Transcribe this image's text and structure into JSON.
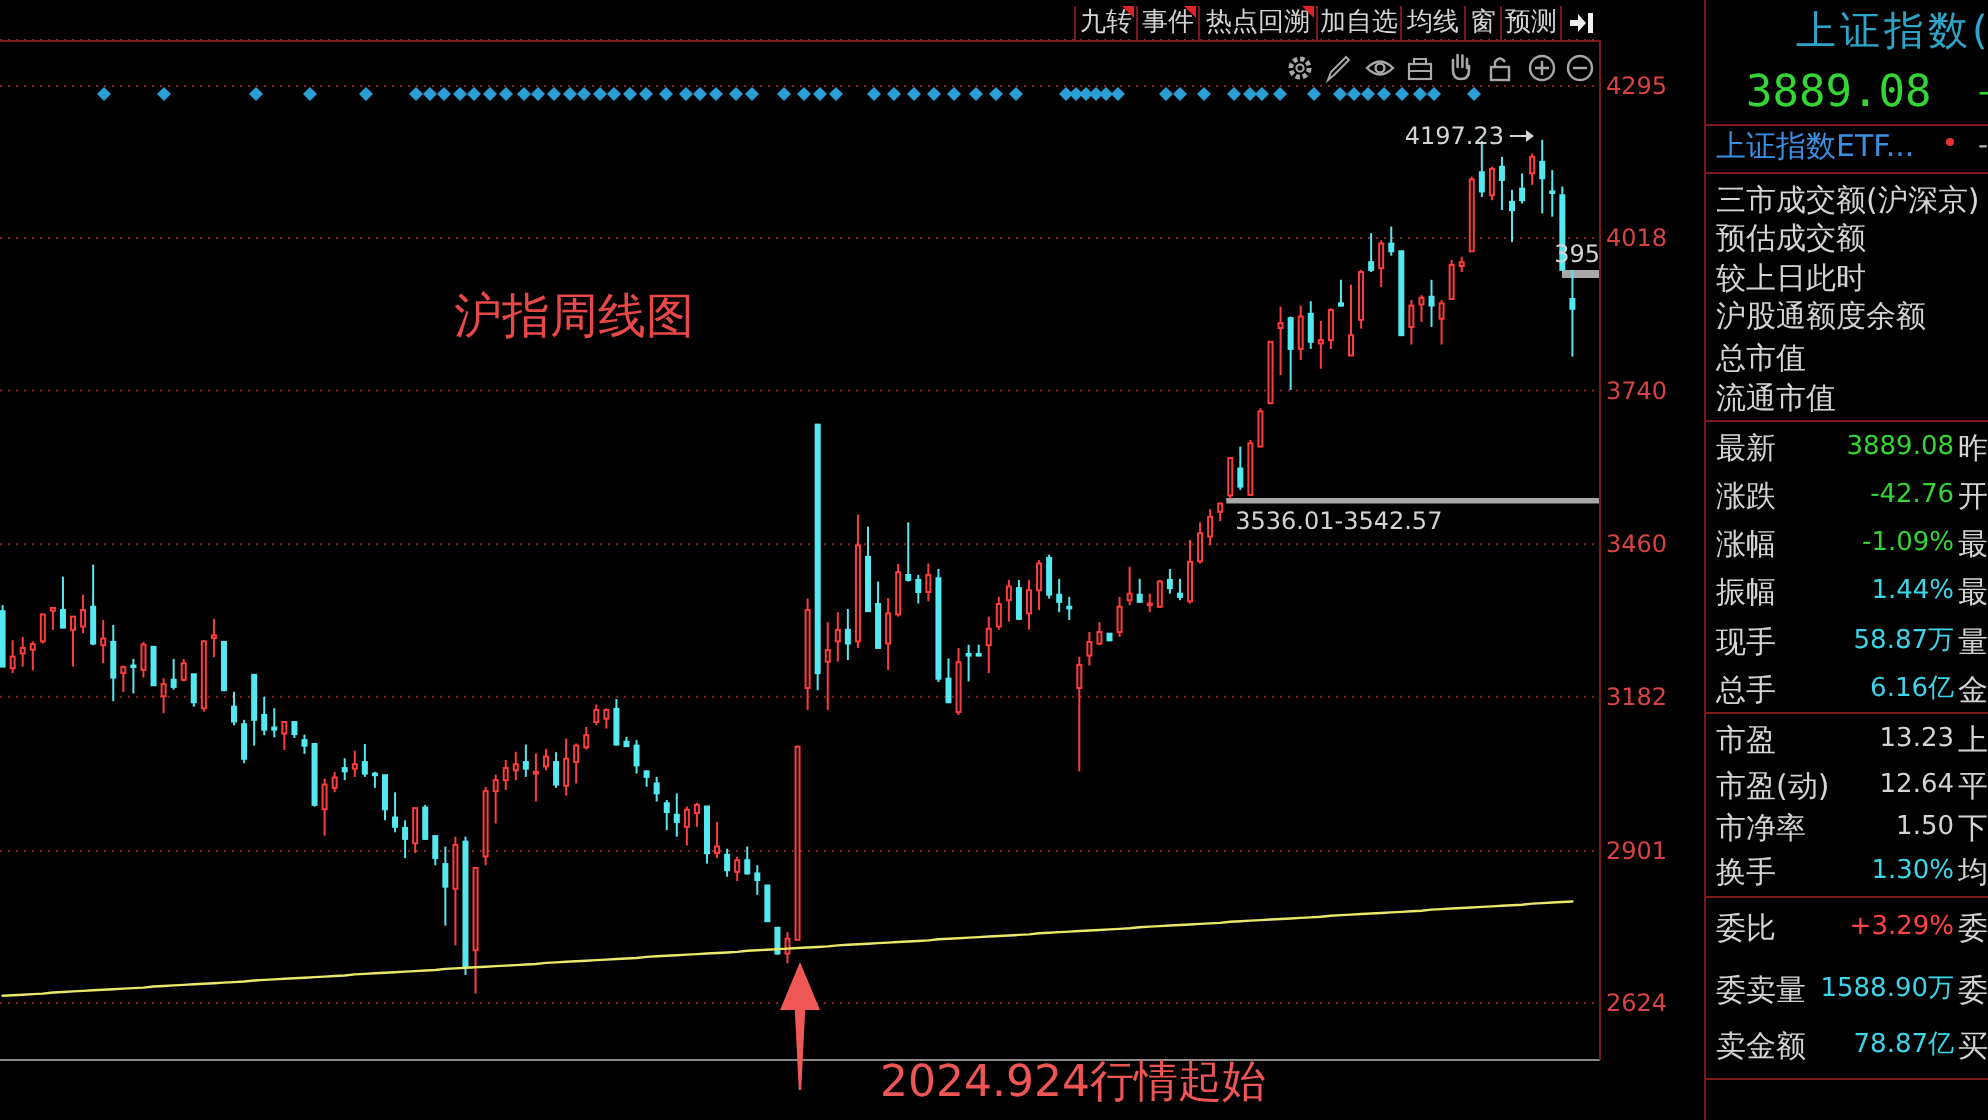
{
  "chart_data": [
    {
      "type": "candlestick",
      "title": "沪指周线图",
      "annotations": [
        "2024.924行情起始",
        "4197.23",
        "395"
      ],
      "categories": [
        null,
        null,
        null,
        null,
        null,
        null,
        null,
        null,
        null,
        null,
        null,
        null,
        null,
        null,
        null,
        null,
        null,
        null,
        null,
        null,
        null,
        null,
        null,
        null,
        null,
        null,
        null,
        null,
        null,
        null,
        null,
        null,
        null,
        null,
        null,
        null,
        null,
        null,
        null,
        null,
        null,
        null,
        null,
        null,
        null,
        null,
        null,
        null,
        null,
        null,
        null,
        null,
        null,
        null,
        null,
        null,
        null,
        null,
        null,
        null,
        null,
        null,
        null,
        null,
        null,
        null,
        null,
        null,
        null,
        null,
        null,
        null,
        null,
        null,
        null,
        null,
        null,
        null,
        null,
        null,
        null,
        null,
        null,
        null,
        null,
        null,
        null,
        null,
        null,
        null,
        null,
        null,
        null,
        null,
        null,
        null,
        null,
        null,
        null,
        null,
        null,
        null,
        null,
        null,
        null,
        null,
        null,
        null,
        null,
        null,
        null,
        null,
        null,
        null,
        null,
        null,
        null,
        null,
        null,
        null,
        null,
        null,
        null,
        null,
        null,
        null,
        null,
        null,
        null,
        null,
        null,
        null,
        null,
        null,
        null,
        null,
        null,
        null,
        null,
        null,
        null,
        null,
        null,
        null,
        null,
        null,
        null,
        null,
        null,
        null,
        null,
        null,
        null,
        null,
        null,
        null,
        null
      ],
      "ohlc": [
        [
          3338,
          3349,
          3237,
          3237
        ],
        [
          3234,
          3285,
          3225,
          3255
        ],
        [
          3261,
          3291,
          3237,
          3271
        ],
        [
          3268,
          3283,
          3230,
          3278
        ],
        [
          3283,
          3332,
          3279,
          3332
        ],
        [
          3339,
          3344,
          3304,
          3344
        ],
        [
          3340,
          3401,
          3308,
          3308
        ],
        [
          3304,
          3328,
          3237,
          3328
        ],
        [
          3310,
          3368,
          3298,
          3340
        ],
        [
          3346,
          3423,
          3276,
          3279
        ],
        [
          3276,
          3322,
          3243,
          3288
        ],
        [
          3282,
          3313,
          3174,
          3217
        ],
        [
          3225,
          3239,
          3191,
          3236
        ],
        [
          3239,
          3251,
          3188,
          3237
        ],
        [
          3231,
          3282,
          3217,
          3277
        ],
        [
          3273,
          3273,
          3203,
          3203
        ],
        [
          3183,
          3216,
          3152,
          3205
        ],
        [
          3213,
          3251,
          3195,
          3200
        ],
        [
          3213,
          3251,
          3210,
          3243
        ],
        [
          3223,
          3223,
          3164,
          3172
        ],
        [
          3161,
          3285,
          3155,
          3283
        ],
        [
          3289,
          3324,
          3254,
          3294
        ],
        [
          3282,
          3282,
          3194,
          3194
        ],
        [
          3164,
          3191,
          3130,
          3137
        ],
        [
          3132,
          3140,
          3061,
          3069
        ],
        [
          3222,
          3222,
          3093,
          3140
        ],
        [
          3149,
          3182,
          3112,
          3122
        ],
        [
          3126,
          3161,
          3108,
          3122
        ],
        [
          3115,
          3136,
          3085,
          3136
        ],
        [
          3136,
          3136,
          3107,
          3114
        ],
        [
          3103,
          3113,
          3078,
          3093
        ],
        [
          3096,
          3096,
          2982,
          2985
        ],
        [
          2977,
          3033,
          2929,
          3022
        ],
        [
          3016,
          3045,
          3008,
          3035
        ],
        [
          3052,
          3070,
          3030,
          3046
        ],
        [
          3051,
          3084,
          3036,
          3059
        ],
        [
          3063,
          3096,
          3036,
          3042
        ],
        [
          3042,
          3045,
          3016,
          3041
        ],
        [
          3039,
          3039,
          2957,
          2977
        ],
        [
          2962,
          3008,
          2935,
          2945
        ],
        [
          2943,
          2957,
          2888,
          2923
        ],
        [
          2915,
          2979,
          2897,
          2979
        ],
        [
          2980,
          2985,
          2921,
          2923
        ],
        [
          2928,
          2928,
          2875,
          2888
        ],
        [
          2877,
          2909,
          2765,
          2836
        ],
        [
          2832,
          2927,
          2729,
          2912
        ],
        [
          2918,
          2927,
          2675,
          2690
        ],
        [
          2720,
          2872,
          2641,
          2870
        ],
        [
          2891,
          3018,
          2875,
          3010
        ],
        [
          3010,
          3040,
          2951,
          3030
        ],
        [
          3030,
          3067,
          3012,
          3052
        ],
        [
          3048,
          3082,
          3030,
          3059
        ],
        [
          3063,
          3095,
          3036,
          3051
        ],
        [
          3042,
          3079,
          2991,
          3045
        ],
        [
          3055,
          3087,
          3048,
          3073
        ],
        [
          3063,
          3081,
          3016,
          3022
        ],
        [
          3020,
          3106,
          3002,
          3069
        ],
        [
          3063,
          3097,
          3024,
          3093
        ],
        [
          3090,
          3127,
          3086,
          3112
        ],
        [
          3136,
          3168,
          3130,
          3158
        ],
        [
          3142,
          3161,
          3124,
          3158
        ],
        [
          3160,
          3178,
          3093,
          3095
        ],
        [
          3100,
          3109,
          3091,
          3092
        ],
        [
          3093,
          3103,
          3042,
          3057
        ],
        [
          3046,
          3048,
          3018,
          3036
        ],
        [
          3024,
          3036,
          2991,
          3006
        ],
        [
          2988,
          2994,
          2939,
          2972
        ],
        [
          2967,
          3006,
          2927,
          2954
        ],
        [
          2945,
          2982,
          2911,
          2976
        ],
        [
          2970,
          2989,
          2945,
          2985
        ],
        [
          2982,
          2982,
          2878,
          2897
        ],
        [
          2897,
          2954,
          2888,
          2909
        ],
        [
          2894,
          2905,
          2854,
          2866
        ],
        [
          2863,
          2890,
          2846,
          2884
        ],
        [
          2884,
          2909,
          2858,
          2860
        ],
        [
          2860,
          2875,
          2821,
          2848
        ],
        [
          2838,
          2838,
          2773,
          2773
        ],
        [
          2761,
          2761,
          2712,
          2714
        ],
        [
          2714,
          2753,
          2696,
          2741
        ],
        [
          2739,
          3093,
          2739,
          3091
        ],
        [
          3198,
          3361,
          3158,
          3340
        ],
        [
          3678,
          3678,
          3194,
          3225
        ],
        [
          3246,
          3318,
          3158,
          3267
        ],
        [
          3283,
          3336,
          3246,
          3304
        ],
        [
          3304,
          3342,
          3249,
          3279
        ],
        [
          3283,
          3514,
          3271,
          3458
        ],
        [
          3437,
          3492,
          3338,
          3338
        ],
        [
          3351,
          3392,
          3271,
          3271
        ],
        [
          3279,
          3362,
          3231,
          3334
        ],
        [
          3332,
          3424,
          3328,
          3409
        ],
        [
          3404,
          3500,
          3392,
          3395
        ],
        [
          3395,
          3404,
          3352,
          3373
        ],
        [
          3373,
          3425,
          3356,
          3404
        ],
        [
          3398,
          3415,
          3209,
          3215
        ],
        [
          3215,
          3252,
          3172,
          3172
        ],
        [
          3154,
          3271,
          3149,
          3245
        ],
        [
          3260,
          3277,
          3210,
          3257
        ],
        [
          3260,
          3277,
          3256,
          3257
        ],
        [
          3276,
          3328,
          3225,
          3306
        ],
        [
          3310,
          3364,
          3304,
          3351
        ],
        [
          3358,
          3395,
          3319,
          3383
        ],
        [
          3380,
          3395,
          3322,
          3324
        ],
        [
          3334,
          3395,
          3304,
          3376
        ],
        [
          3376,
          3431,
          3340,
          3425
        ],
        [
          3435,
          3441,
          3361,
          3368
        ],
        [
          3368,
          3397,
          3336,
          3355
        ],
        [
          3346,
          3364,
          3322,
          3345
        ],
        [
          3198,
          3255,
          3046,
          3240
        ],
        [
          3257,
          3300,
          3239,
          3282
        ],
        [
          3279,
          3318,
          3276,
          3300
        ],
        [
          3297,
          3297,
          3283,
          3285
        ],
        [
          3300,
          3364,
          3291,
          3346
        ],
        [
          3358,
          3419,
          3349,
          3370
        ],
        [
          3368,
          3397,
          3355,
          3355
        ],
        [
          3350,
          3370,
          3336,
          3352
        ],
        [
          3346,
          3395,
          3344,
          3392
        ],
        [
          3395,
          3415,
          3370,
          3380
        ],
        [
          3370,
          3397,
          3358,
          3364
        ],
        [
          3356,
          3468,
          3352,
          3428
        ],
        [
          3429,
          3500,
          3425,
          3480
        ],
        [
          3474,
          3524,
          3458,
          3510
        ],
        [
          3519,
          3536,
          3502,
          3534
        ],
        [
          3549,
          3619,
          3543,
          3617
        ],
        [
          3598,
          3638,
          3559,
          3565
        ],
        [
          3550,
          3650,
          3550,
          3644
        ],
        [
          3638,
          3708,
          3638,
          3702
        ],
        [
          3717,
          3829,
          3717,
          3829
        ],
        [
          3854,
          3893,
          3768,
          3863
        ],
        [
          3872,
          3875,
          3741,
          3816
        ],
        [
          3816,
          3895,
          3796,
          3875
        ],
        [
          3880,
          3903,
          3816,
          3829
        ],
        [
          3826,
          3867,
          3780,
          3832
        ],
        [
          3832,
          3890,
          3816,
          3887
        ],
        [
          3899,
          3942,
          3893,
          3895
        ],
        [
          3804,
          3933,
          3804,
          3841
        ],
        [
          3869,
          3960,
          3853,
          3956
        ],
        [
          3974,
          4027,
          3956,
          3960
        ],
        [
          3963,
          4014,
          3929,
          4008
        ],
        [
          4008,
          4039,
          3986,
          3994
        ],
        [
          3994,
          3994,
          3841,
          3841
        ],
        [
          3856,
          3905,
          3824,
          3895
        ],
        [
          3897,
          3914,
          3865,
          3909
        ],
        [
          3911,
          3942,
          3856,
          3895
        ],
        [
          3871,
          3905,
          3824,
          3899
        ],
        [
          3907,
          3978,
          3907,
          3969
        ],
        [
          3967,
          3984,
          3956,
          3974
        ],
        [
          3994,
          4130,
          3994,
          4125
        ],
        [
          4138,
          4195,
          4093,
          4103
        ],
        [
          4096,
          4148,
          4087,
          4144
        ],
        [
          4148,
          4166,
          4069,
          4124
        ],
        [
          4084,
          4106,
          4011,
          4069
        ],
        [
          4108,
          4136,
          4081,
          4087
        ],
        [
          4136,
          4172,
          4115,
          4166
        ],
        [
          4157,
          4197.23,
          4063,
          4127
        ],
        [
          4103,
          4142,
          4057,
          4101
        ],
        [
          4096,
          4112,
          3960,
          3960
        ],
        [
          3907,
          3960,
          3802,
          3889
        ]
      ],
      "colors": [
        "#54e8f0",
        "#ff3c3c",
        "#ff3c3c",
        "#ff3c3c",
        "#ff3c3c",
        "#ff3c3c",
        "#54e8f0",
        "#ff3c3c",
        "#ff3c3c",
        "#54e8f0",
        "#ff3c3c",
        "#54e8f0",
        "#ff3c3c",
        "#54e8f0",
        "#ff3c3c",
        "#54e8f0",
        "#ff3c3c",
        "#54e8f0",
        "#ff3c3c",
        "#54e8f0",
        "#ff3c3c",
        "#ff3c3c",
        "#54e8f0",
        "#54e8f0",
        "#54e8f0",
        "#54e8f0",
        "#54e8f0",
        "#54e8f0",
        "#ff3c3c",
        "#54e8f0",
        "#54e8f0",
        "#54e8f0",
        "#ff3c3c",
        "#ff3c3c",
        "#54e8f0",
        "#ff3c3c",
        "#54e8f0",
        "#54e8f0",
        "#54e8f0",
        "#54e8f0",
        "#54e8f0",
        "#ff3c3c",
        "#54e8f0",
        "#54e8f0",
        "#54e8f0",
        "#ff3c3c",
        "#54e8f0",
        "#ff3c3c",
        "#ff3c3c",
        "#ff3c3c",
        "#ff3c3c",
        "#ff3c3c",
        "#54e8f0",
        "#ff3c3c",
        "#ff3c3c",
        "#54e8f0",
        "#ff3c3c",
        "#ff3c3c",
        "#ff3c3c",
        "#ff3c3c",
        "#ff3c3c",
        "#54e8f0",
        "#54e8f0",
        "#54e8f0",
        "#54e8f0",
        "#54e8f0",
        "#54e8f0",
        "#54e8f0",
        "#ff3c3c",
        "#ff3c3c",
        "#54e8f0",
        "#ff3c3c",
        "#54e8f0",
        "#ff3c3c",
        "#54e8f0",
        "#54e8f0",
        "#54e8f0",
        "#54e8f0",
        "#ff3c3c",
        "#ff3c3c",
        "#ff3c3c",
        "#54e8f0",
        "#ff3c3c",
        "#ff3c3c",
        "#54e8f0",
        "#ff3c3c",
        "#54e8f0",
        "#54e8f0",
        "#ff3c3c",
        "#ff3c3c",
        "#54e8f0",
        "#54e8f0",
        "#ff3c3c",
        "#54e8f0",
        "#54e8f0",
        "#ff3c3c",
        "#54e8f0",
        "#54e8f0",
        "#ff3c3c",
        "#ff3c3c",
        "#ff3c3c",
        "#54e8f0",
        "#ff3c3c",
        "#ff3c3c",
        "#54e8f0",
        "#54e8f0",
        "#54e8f0",
        "#ff3c3c",
        "#ff3c3c",
        "#ff3c3c",
        "#54e8f0",
        "#ff3c3c",
        "#ff3c3c",
        "#54e8f0",
        "#ff3c3c",
        "#ff3c3c",
        "#54e8f0",
        "#54e8f0",
        "#ff3c3c",
        "#ff3c3c",
        "#ff3c3c",
        "#ff3c3c",
        "#ff3c3c",
        "#54e8f0",
        "#ff3c3c",
        "#ff3c3c",
        "#ff3c3c",
        "#ff3c3c",
        "#54e8f0",
        "#ff3c3c",
        "#54e8f0",
        "#ff3c3c",
        "#ff3c3c",
        "#54e8f0",
        "#ff3c3c",
        "#ff3c3c",
        "#54e8f0",
        "#ff3c3c",
        "#54e8f0",
        "#54e8f0",
        "#ff3c3c",
        "#ff3c3c",
        "#54e8f0",
        "#ff3c3c",
        "#ff3c3c",
        "#ff3c3c",
        "#ff3c3c",
        "#54e8f0",
        "#ff3c3c",
        "#54e8f0",
        "#54e8f0",
        "#54e8f0",
        "#ff3c3c",
        "#54e8f0",
        "#54e8f0",
        "#54e8f0",
        "#54e8f0"
      ],
      "series": [
        {
          "type": "line",
          "color": "#e8e86a",
          "values": [
            2637,
            2638,
            2639,
            2640,
            2641,
            2643,
            2644,
            2645,
            2646,
            2647,
            2648,
            2649,
            2650,
            2651,
            2652,
            2654,
            2655,
            2656,
            2657,
            2658,
            2659,
            2660,
            2661,
            2662,
            2663,
            2665,
            2666,
            2667,
            2668,
            2669,
            2670,
            2671,
            2672,
            2673,
            2674,
            2676,
            2677,
            2678,
            2679,
            2680,
            2681,
            2682,
            2683,
            2684,
            2686,
            2687,
            2688,
            2689,
            2690,
            2691,
            2692,
            2693,
            2694,
            2695,
            2697,
            2698,
            2699,
            2700,
            2701,
            2702,
            2703,
            2704,
            2705,
            2706,
            2708,
            2709,
            2710,
            2711,
            2712,
            2713,
            2714,
            2715,
            2716,
            2717,
            2719,
            2720,
            2721,
            2722,
            2723,
            2724,
            2725,
            2726,
            2727,
            2729,
            2730,
            2731,
            2732,
            2733,
            2734,
            2735,
            2736,
            2737,
            2738,
            2740,
            2741,
            2742,
            2743,
            2744,
            2745,
            2746,
            2747,
            2748,
            2749,
            2751,
            2752,
            2753,
            2754,
            2755,
            2756,
            2757,
            2758,
            2759,
            2760,
            2762,
            2763,
            2764,
            2765,
            2766,
            2767,
            2768,
            2769,
            2770,
            2772,
            2773,
            2774,
            2775,
            2776,
            2777,
            2778,
            2779,
            2780,
            2781,
            2783,
            2784,
            2785,
            2786,
            2787,
            2788,
            2789,
            2790,
            2791,
            2792,
            2794,
            2795,
            2796,
            2797,
            2798,
            2799,
            2800,
            2801,
            2802,
            2803,
            2805,
            2806,
            2807,
            2808,
            2809
          ]
        }
      ],
      "ylim": [
        2520,
        4379
      ],
      "yticks": [
        2624,
        2901,
        3182,
        3460,
        3740,
        4018,
        4295
      ],
      "grid": "y",
      "tick_labels": "y",
      "bands": [
        {
          "axis": "y",
          "from": 3536.01,
          "to": 3542.57,
          "label": "3536.01-3542.57",
          "color": "#a8a8a8"
        }
      ]
    },
    {
      "type": "other",
      "annotations": [
        "九转",
        "事件",
        "热点回溯",
        "加自选",
        "均线",
        "窗",
        "预测"
      ]
    },
    {
      "type": "other",
      "title": "上证指数(",
      "subtitle": "3889.08",
      "annotations": [
        "上证指数ETF...",
        "-",
        "-"
      ],
      "categories": [
        "三市成交额(沪深京)",
        "预估成交额",
        "较上日此时",
        "沪股通额度余额",
        "总市值",
        "流通市值",
        "最新",
        "涨跌",
        "涨幅",
        "振幅",
        "现手",
        "总手",
        "市盈",
        "市盈(动)",
        "市净率",
        "换手",
        "委比",
        "委卖量",
        "卖金额"
      ],
      "value_labels": [
        null,
        null,
        null,
        null,
        null,
        null,
        "3889.08",
        "-42.76",
        "-1.09%",
        "1.44%",
        "58.87万",
        "6.16亿",
        "13.23",
        "12.64",
        "1.50",
        "1.30%",
        "+3.29%",
        "1588.90万",
        "78.87亿"
      ],
      "colors": [
        null,
        null,
        null,
        null,
        null,
        null,
        "#33d633",
        "#33d633",
        "#33d633",
        "#3cd6ea",
        "#3cd6ea",
        "#3cd6ea",
        "#d4d4d4",
        "#d4d4d4",
        "#d4d4d4",
        "#3cd6ea",
        "#ff4444",
        "#3cd6ea",
        "#3cd6ea"
      ],
      "y2_categories": [
        null,
        null,
        null,
        null,
        null,
        null,
        "昨",
        "开",
        "最",
        "最",
        "量",
        "金",
        "上",
        "平",
        "下",
        "均",
        "委",
        "委",
        "买"
      ]
    }
  ]
}
